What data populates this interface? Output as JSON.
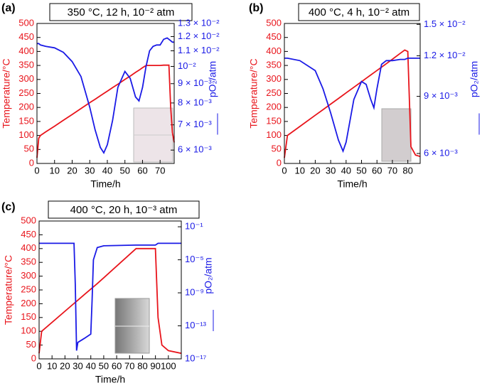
{
  "chart_data": [
    {
      "type": "line",
      "panel_label": "(a)",
      "title": "350 °C, 12 h, 10⁻² atm",
      "xlabel": "Time/h",
      "ylabel": "Temperature/°C",
      "y2label": "pO₂/atm",
      "x": [
        0,
        1,
        2,
        5,
        10,
        15,
        20,
        25,
        30,
        33,
        36,
        38,
        40,
        43,
        46,
        50,
        53,
        56,
        58,
        60,
        62,
        64,
        66,
        68,
        70,
        72,
        74,
        75,
        76,
        77,
        78
      ],
      "xlim": [
        0,
        78
      ],
      "xticks": [
        0,
        10,
        20,
        30,
        40,
        50,
        60,
        70
      ],
      "ylim": [
        0,
        500
      ],
      "yticks": [
        0,
        50,
        100,
        150,
        200,
        250,
        300,
        350,
        400,
        450,
        500
      ],
      "y2lim": [
        0.00553,
        0.013
      ],
      "y2log": true,
      "y2ticks": [
        {
          "value": 0.006,
          "label": "6 × 10⁻³"
        },
        {
          "value": 0.007,
          "label": "7 × 10⁻³"
        },
        {
          "value": 0.008,
          "label": "8 × 10⁻³"
        },
        {
          "value": 0.009,
          "label": "9 × 10⁻³"
        },
        {
          "value": 0.01,
          "label": "10⁻²"
        },
        {
          "value": 0.011,
          "label": "1.1 × 10⁻²"
        },
        {
          "value": 0.012,
          "label": "1.2 × 10⁻²"
        },
        {
          "value": 0.013,
          "label": "1.3 × 10⁻²"
        }
      ],
      "series": [
        {
          "color": "#e8141b",
          "values": [
            20,
            90,
            100,
            113,
            133,
            154,
            175,
            196,
            217,
            229,
            242,
            250,
            258,
            271,
            283,
            300,
            312,
            325,
            333,
            342,
            350,
            350,
            350,
            350,
            350,
            351,
            351,
            351,
            200,
            110,
            75
          ]
        },
        {
          "color": "#1a1ae6",
          "axis": "y2",
          "values": [
            0.0115,
            0.0115,
            0.0114,
            0.0113,
            0.0112,
            0.0109,
            0.0103,
            0.0094,
            0.0078,
            0.0068,
            0.0061,
            0.0059,
            0.0062,
            0.0072,
            0.0088,
            0.0097,
            0.0093,
            0.0083,
            0.0081,
            0.0088,
            0.01,
            0.011,
            0.0113,
            0.0114,
            0.0114,
            0.0118,
            0.0119,
            0.0118,
            0.0117,
            0.0116,
            0.0116
          ]
        }
      ]
    },
    {
      "type": "line",
      "panel_label": "(b)",
      "title": "400 °C, 4 h, 10⁻² atm",
      "xlabel": "Time/h",
      "ylabel": "Temperature/°C",
      "y2label": "pO₂/atm",
      "x": [
        0,
        2,
        10,
        20,
        25,
        30,
        35,
        38,
        40,
        45,
        50,
        53,
        56,
        58,
        60,
        63,
        66,
        70,
        75,
        78,
        80,
        82,
        85,
        88
      ],
      "xlim": [
        0,
        88
      ],
      "xticks": [
        0,
        10,
        20,
        30,
        40,
        50,
        60,
        70,
        80
      ],
      "ylim": [
        0,
        500
      ],
      "yticks": [
        0,
        50,
        100,
        150,
        200,
        250,
        300,
        350,
        400,
        450,
        500
      ],
      "y2lim": [
        0.00559,
        0.0151
      ],
      "y2log": true,
      "y2ticks": [
        {
          "value": 0.006,
          "label": "6 × 10⁻³"
        },
        {
          "value": 0.009,
          "label": "9 × 10⁻³"
        },
        {
          "value": 0.012,
          "label": "1.2 × 10⁻²"
        },
        {
          "value": 0.015,
          "label": "1.5 × 10⁻²"
        }
      ],
      "series": [
        {
          "color": "#e8141b",
          "values": [
            20,
            100,
            132,
            172,
            192,
            212,
            232,
            244,
            252,
            272,
            292,
            304,
            316,
            324,
            332,
            344,
            356,
            372,
            393,
            405,
            400,
            60,
            30,
            25
          ]
        },
        {
          "color": "#1a1ae6",
          "axis": "y2",
          "values": [
            0.0118,
            0.0118,
            0.0116,
            0.0108,
            0.0095,
            0.008,
            0.0066,
            0.0061,
            0.0065,
            0.0088,
            0.01,
            0.0098,
            0.0088,
            0.0083,
            0.0095,
            0.0113,
            0.0116,
            0.0116,
            0.0117,
            0.0117,
            0.0118,
            0.0118,
            0.0118,
            0.0118
          ]
        }
      ]
    },
    {
      "type": "line",
      "panel_label": "(c)",
      "title": "400 °C, 20 h, 10⁻³ atm",
      "xlabel": "Time/h",
      "ylabel": "Temperature/°C",
      "y2label": "pO₂/atm",
      "x": [
        0,
        2,
        27,
        28,
        29,
        30,
        35,
        40,
        41,
        42,
        45,
        50,
        75,
        90,
        92,
        95,
        100,
        110
      ],
      "xlim": [
        0,
        110
      ],
      "xticks": [
        0,
        10,
        20,
        30,
        40,
        50,
        60,
        70,
        80,
        90,
        100
      ],
      "ylim": [
        0,
        500
      ],
      "yticks": [
        0,
        50,
        100,
        150,
        200,
        250,
        300,
        350,
        400,
        450,
        500
      ],
      "y2lim": [
        1e-17,
        0.5
      ],
      "y2log": true,
      "y2ticks": [
        {
          "value": 1e-17,
          "label": "10⁻¹⁷"
        },
        {
          "value": 1e-13,
          "label": "10⁻¹³"
        },
        {
          "value": 1e-09,
          "label": "10⁻⁹"
        },
        {
          "value": 1e-05,
          "label": "10⁻⁵"
        },
        {
          "value": 0.1,
          "label": "10⁻¹"
        }
      ],
      "series": [
        {
          "color": "#e8141b",
          "values": [
            20,
            100,
            201,
            205,
            209,
            213,
            233,
            253,
            257,
            261,
            273,
            294,
            400,
            400,
            150,
            50,
            30,
            20
          ]
        },
        {
          "color": "#1a1ae6",
          "axis": "y2",
          "values": [
            0.001,
            0.001,
            0.001,
            1e-08,
            1e-16,
            1e-15,
            3e-15,
            1e-14,
            1e-10,
            1e-05,
            0.0003,
            0.0005,
            0.0006,
            0.0006,
            0.001,
            0.001,
            0.001,
            0.001
          ]
        }
      ]
    }
  ]
}
